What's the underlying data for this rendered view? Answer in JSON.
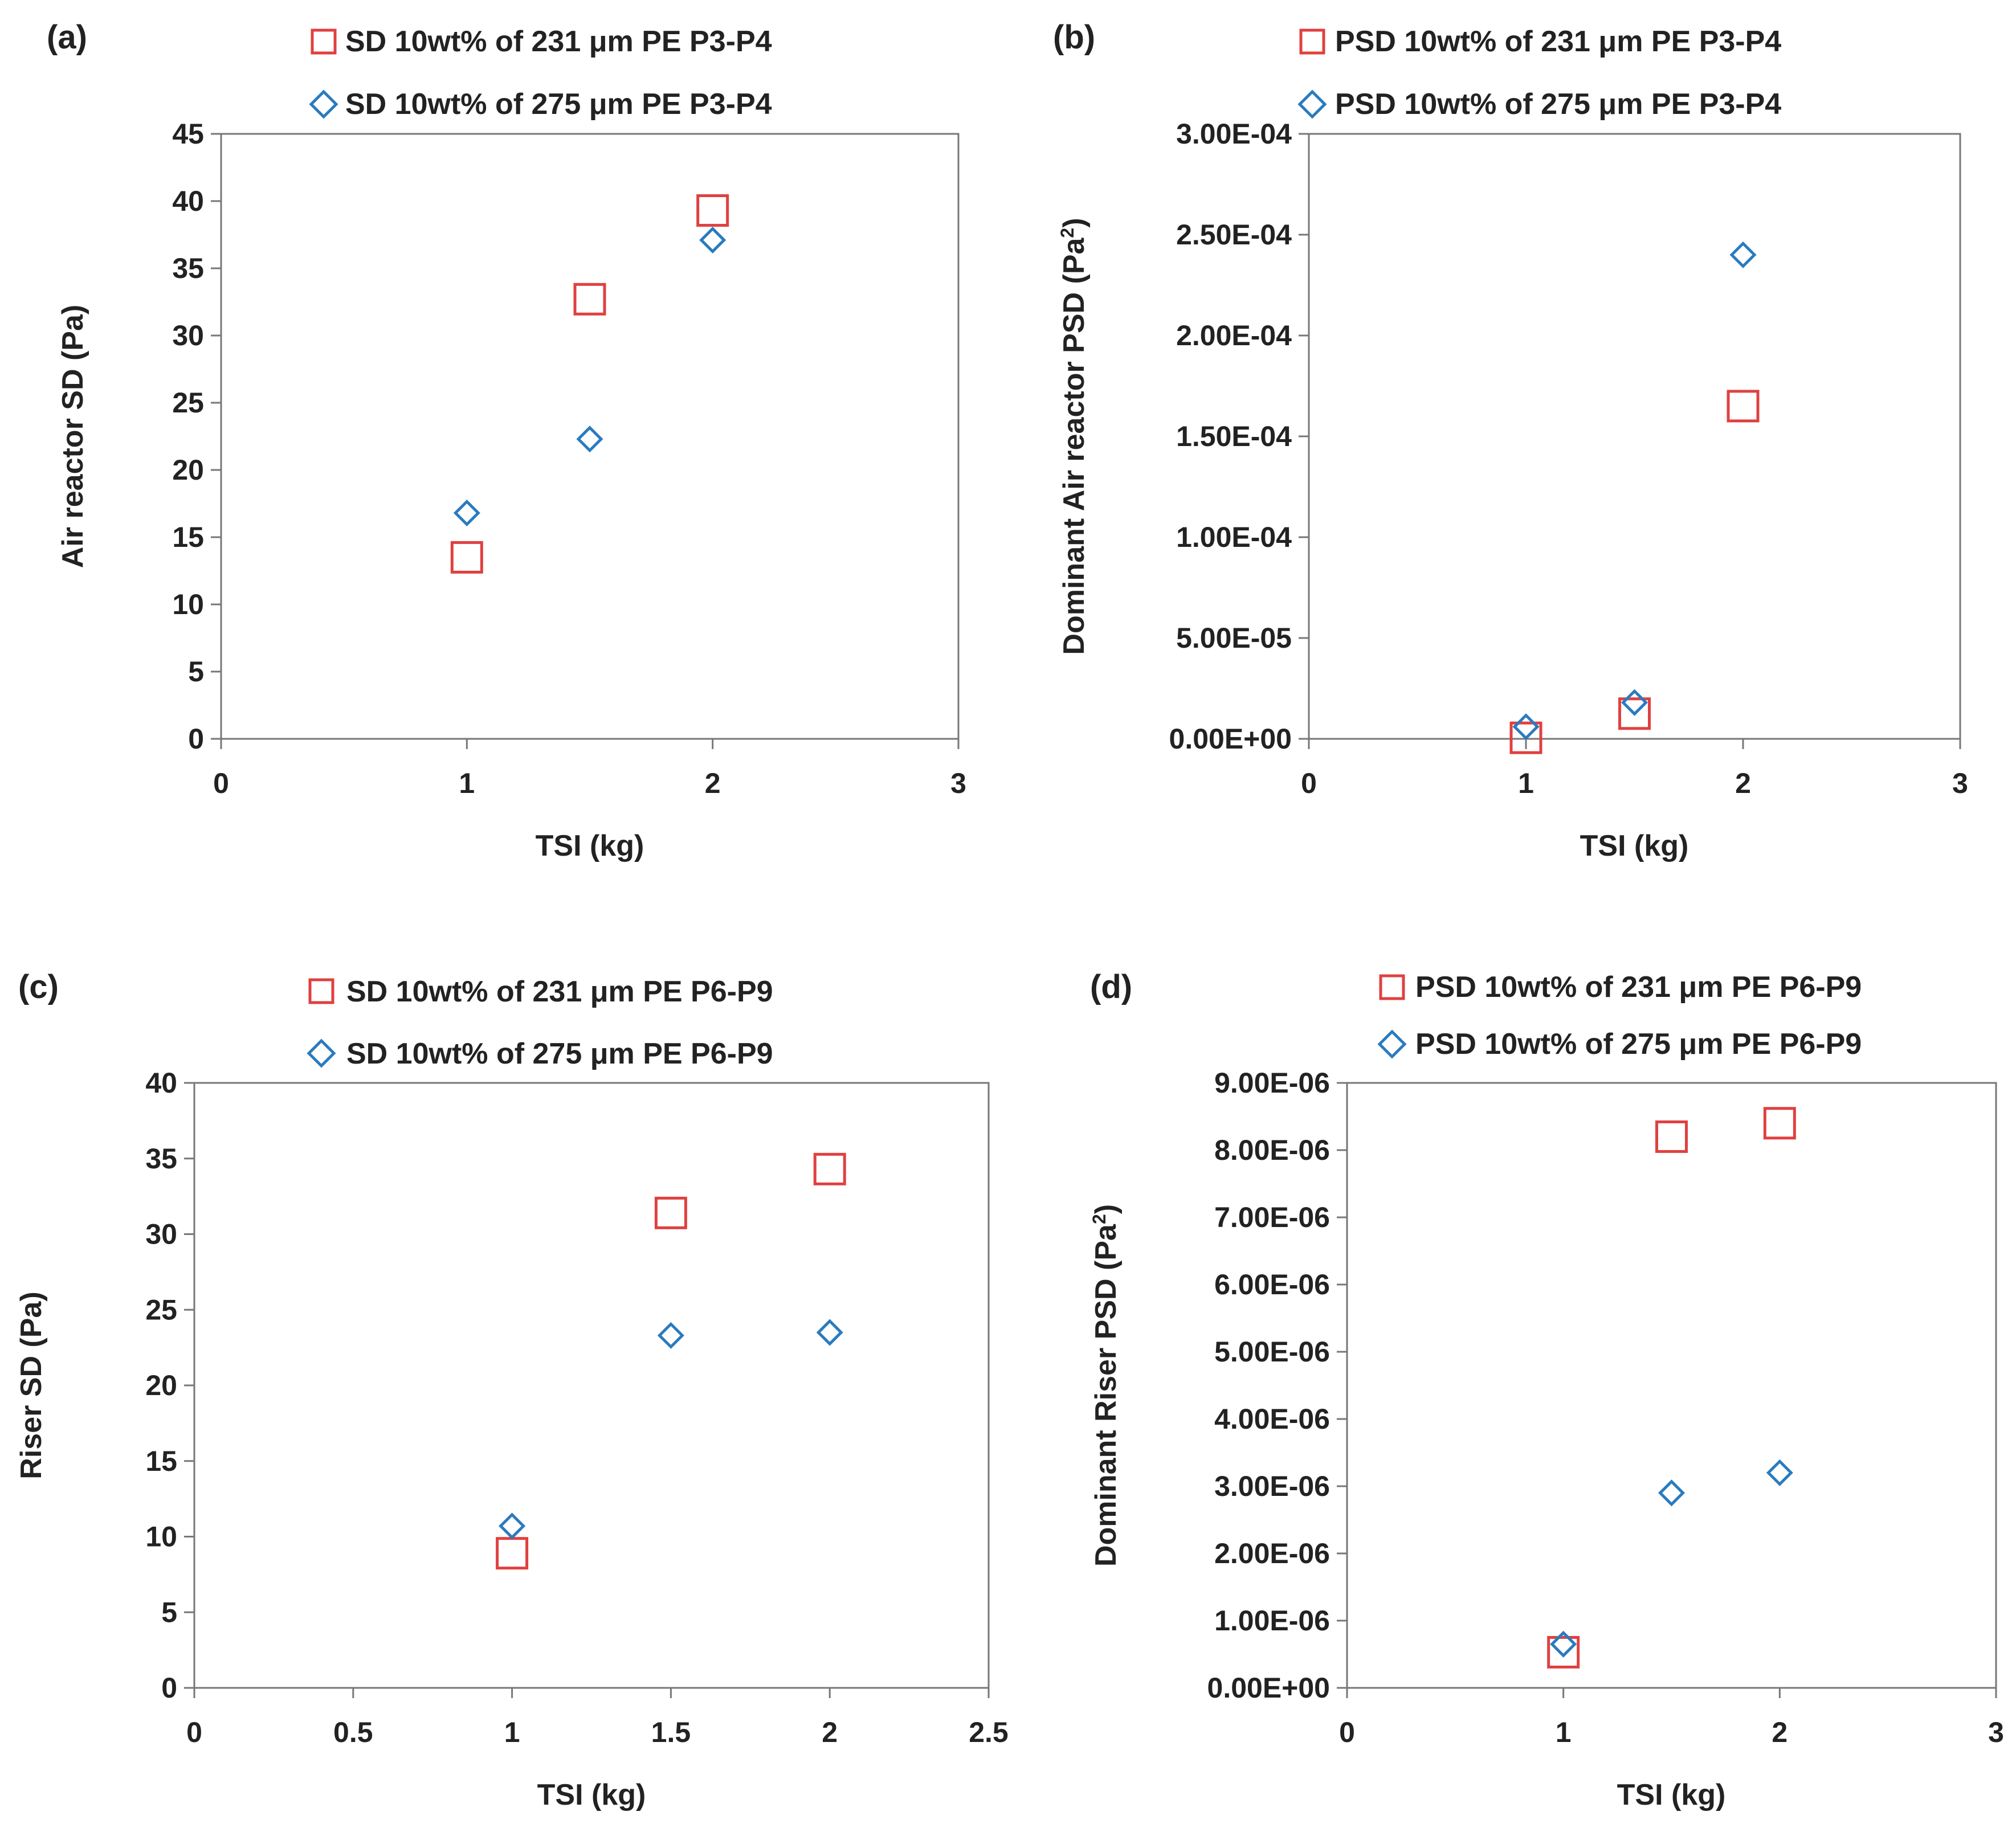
{
  "figure": {
    "panels": [
      {
        "label": "(a)",
        "xlabel": "TSI (kg)",
        "ylabel": "Air reactor SD (Pa)",
        "ylabel_sup": "",
        "ylabel_tail": "",
        "legend": [
          "SD 10wt% of 231 μm PE P3-P4",
          "SD 10wt% of 275 μm PE P3-P4"
        ]
      },
      {
        "label": "(b)",
        "xlabel": "TSI (kg)",
        "ylabel": "Dominant Air reactor PSD (Pa",
        "ylabel_sup": "2",
        "ylabel_tail": ")",
        "legend": [
          "PSD 10wt% of 231 μm PE P3-P4",
          "PSD 10wt% of 275 μm PE P3-P4"
        ]
      },
      {
        "label": "(c)",
        "xlabel": "TSI (kg)",
        "ylabel": "Riser SD (Pa)",
        "ylabel_sup": "",
        "ylabel_tail": "",
        "legend": [
          "SD 10wt% of 231 μm PE P6-P9",
          "SD 10wt% of 275 μm PE P6-P9"
        ]
      },
      {
        "label": "(d)",
        "xlabel": "TSI (kg)",
        "ylabel": "Dominant Riser PSD (Pa",
        "ylabel_sup": "2",
        "ylabel_tail": ")",
        "legend": [
          "PSD 10wt% of 231 μm PE P6-P9",
          "PSD 10wt% of 275 μm PE P6-P9"
        ]
      }
    ]
  },
  "colors": {
    "series_231": "#e04040",
    "series_275": "#2a7bbf",
    "axis": "#777777",
    "text": "#222222"
  },
  "chart_data": [
    {
      "type": "scatter",
      "title": "(a)",
      "xlabel": "TSI (kg)",
      "ylabel": "Air reactor SD (Pa)",
      "xlim": [
        0,
        3
      ],
      "ylim": [
        0,
        45
      ],
      "xticks": [
        "0",
        "1",
        "2",
        "3"
      ],
      "xtick_values": [
        0,
        1,
        2,
        3
      ],
      "yticks": [
        "0",
        "5",
        "10",
        "15",
        "20",
        "25",
        "30",
        "35",
        "40",
        "45"
      ],
      "ytick_values": [
        0,
        5,
        10,
        15,
        20,
        25,
        30,
        35,
        40,
        45
      ],
      "legend_position": "top",
      "series": [
        {
          "name": "SD 10wt% of 231 μm PE P3-P4",
          "marker": "square",
          "x": [
            1,
            1.5,
            2
          ],
          "y": [
            13.5,
            32.7,
            39.3
          ]
        },
        {
          "name": "SD 10wt% of 275 μm PE P3-P4",
          "marker": "diamond",
          "x": [
            1,
            1.5,
            2
          ],
          "y": [
            16.8,
            22.3,
            37.1
          ]
        }
      ]
    },
    {
      "type": "scatter",
      "title": "(b)",
      "xlabel": "TSI (kg)",
      "ylabel": "Dominant Air reactor PSD (Pa2)",
      "xlim": [
        0,
        3
      ],
      "ylim": [
        0,
        0.0003
      ],
      "xticks": [
        "0",
        "1",
        "2",
        "3"
      ],
      "xtick_values": [
        0,
        1,
        2,
        3
      ],
      "yticks": [
        "0.00E+00",
        "5.00E-05",
        "1.00E-04",
        "1.50E-04",
        "2.00E-04",
        "2.50E-04",
        "3.00E-04"
      ],
      "ytick_values": [
        0,
        5e-05,
        0.0001,
        0.00015,
        0.0002,
        0.00025,
        0.0003
      ],
      "legend_position": "top",
      "series": [
        {
          "name": "PSD 10wt% of 231 μm PE P3-P4",
          "marker": "square",
          "x": [
            1,
            1.5,
            2
          ],
          "y": [
            5e-07,
            1.25e-05,
            0.000165
          ]
        },
        {
          "name": "PSD 10wt% of 275 μm PE P3-P4",
          "marker": "diamond",
          "x": [
            1,
            1.5,
            2
          ],
          "y": [
            6e-06,
            1.8e-05,
            0.00024
          ]
        }
      ]
    },
    {
      "type": "scatter",
      "title": "(c)",
      "xlabel": "TSI (kg)",
      "ylabel": "Riser SD (Pa)",
      "xlim": [
        0,
        2.5
      ],
      "ylim": [
        0,
        40
      ],
      "xticks": [
        "0",
        "0.5",
        "1",
        "1.5",
        "2",
        "2.5"
      ],
      "xtick_values": [
        0,
        0.5,
        1,
        1.5,
        2,
        2.5
      ],
      "yticks": [
        "0",
        "5",
        "10",
        "15",
        "20",
        "25",
        "30",
        "35",
        "40"
      ],
      "ytick_values": [
        0,
        5,
        10,
        15,
        20,
        25,
        30,
        35,
        40
      ],
      "legend_position": "top",
      "series": [
        {
          "name": "SD 10wt% of 231 μm PE P6-P9",
          "marker": "square",
          "x": [
            1,
            1.5,
            2
          ],
          "y": [
            8.9,
            31.4,
            34.3
          ]
        },
        {
          "name": "SD 10wt% of 275 μm PE P6-P9",
          "marker": "diamond",
          "x": [
            1,
            1.5,
            2
          ],
          "y": [
            10.7,
            23.3,
            23.5
          ]
        }
      ]
    },
    {
      "type": "scatter",
      "title": "(d)",
      "xlabel": "TSI (kg)",
      "ylabel": "Dominant Riser PSD (Pa2)",
      "xlim": [
        0,
        3
      ],
      "ylim": [
        0,
        9e-06
      ],
      "xticks": [
        "0",
        "1",
        "2",
        "3"
      ],
      "xtick_values": [
        0,
        1,
        2,
        3
      ],
      "yticks": [
        "0.00E+00",
        "1.00E-06",
        "2.00E-06",
        "3.00E-06",
        "4.00E-06",
        "5.00E-06",
        "6.00E-06",
        "7.00E-06",
        "8.00E-06",
        "9.00E-06"
      ],
      "ytick_values": [
        0,
        1e-06,
        2e-06,
        3e-06,
        4e-06,
        5e-06,
        6e-06,
        7e-06,
        8e-06,
        9e-06
      ],
      "legend_position": "top",
      "series": [
        {
          "name": "PSD 10wt% of 231 μm PE P6-P9",
          "marker": "square",
          "x": [
            1,
            1.5,
            2
          ],
          "y": [
            5.3e-07,
            8.2e-06,
            8.4e-06
          ]
        },
        {
          "name": "PSD 10wt% of 275 μm PE P6-P9",
          "marker": "diamond",
          "x": [
            1,
            1.5,
            2
          ],
          "y": [
            6.5e-07,
            2.9e-06,
            3.2e-06
          ]
        }
      ]
    }
  ]
}
